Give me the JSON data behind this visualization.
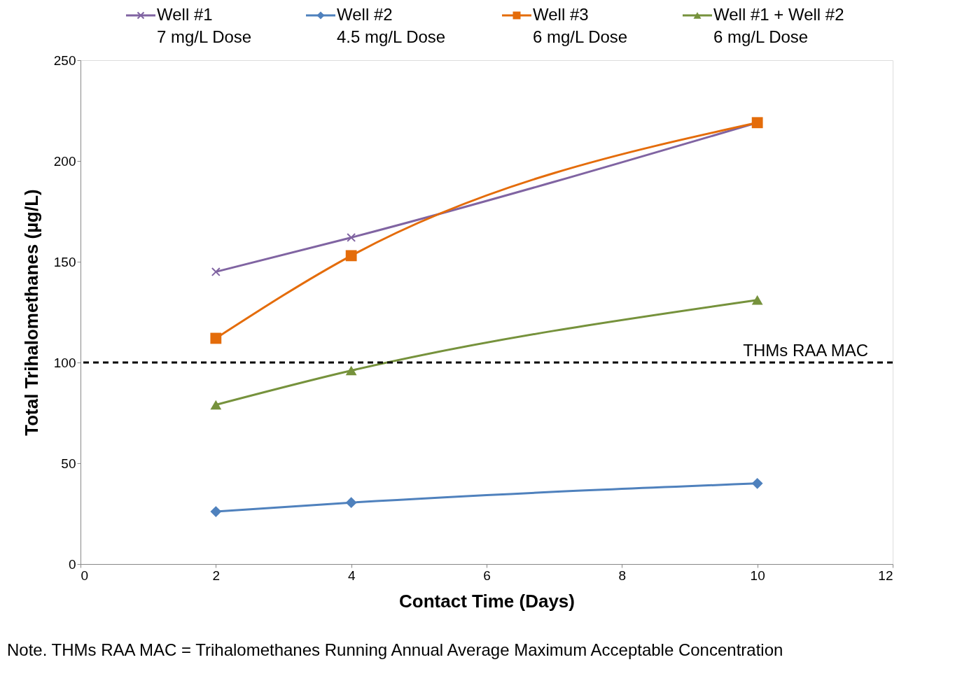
{
  "chart_data": {
    "type": "line",
    "xlabel": "Contact Time (Days)",
    "ylabel": "Total Trihalomethanes  (µg/L)",
    "x": [
      2,
      4,
      10
    ],
    "series": [
      {
        "name": "Well #1\n7 mg/L Dose",
        "color": "#8064a2",
        "marker": "cross",
        "values": [
          145,
          162,
          219
        ]
      },
      {
        "name": "Well #2\n4.5 mg/L Dose",
        "color": "#4f81bd",
        "marker": "diamond",
        "values": [
          26,
          30.5,
          40
        ]
      },
      {
        "name": "Well #3\n6 mg/L Dose",
        "color": "#e46c0a",
        "marker": "square",
        "values": [
          112,
          153,
          219
        ]
      },
      {
        "name": "Well #1 + Well #2\n6 mg/L Dose",
        "color": "#76923c",
        "marker": "triangle",
        "values": [
          79,
          96,
          131
        ]
      }
    ],
    "xlim": [
      0,
      12
    ],
    "xticks": [
      0,
      2,
      4,
      6,
      8,
      10,
      12
    ],
    "ylim": [
      0,
      250
    ],
    "yticks": [
      0,
      50,
      100,
      150,
      200,
      250
    ],
    "ref_lines": [
      {
        "axis": "y",
        "value": 100,
        "label": "THMs RAA MAC",
        "color": "#000000",
        "line_style": "dashed"
      }
    ],
    "annotations": [
      "Note. THMs RAA MAC = Trihalomethanes Running Annual Average Maximum Acceptable Concentration"
    ],
    "grid": false,
    "legend": "top",
    "line_style": "solid"
  }
}
